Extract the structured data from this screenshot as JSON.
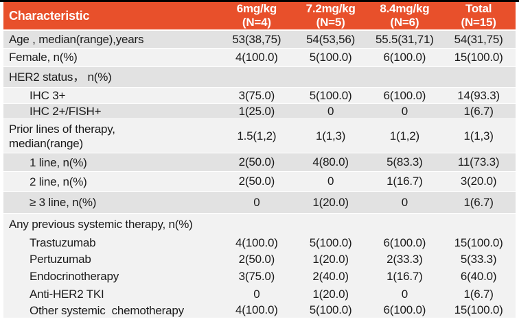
{
  "table": {
    "colors": {
      "header_bg": "#E8502B",
      "header_text": "#FFFFFF",
      "row_dark": "#E2E2E2",
      "row_light": "#F2F2F2",
      "top_border": "#000000",
      "body_text": "#1B1B1B"
    },
    "header": {
      "characteristic": "Characteristic",
      "columns": [
        "6mg/kg\n(N=4)",
        "7.2mg/kg\n(N=5)",
        "8.4mg/kg\n(N=6)",
        "Total\n(N=15)"
      ]
    },
    "rows": [
      {
        "label": "Age , median(range),years",
        "indent": false,
        "shade": "dark",
        "values": [
          "53(38,75)",
          "54(53,56)",
          "55.5(31,71)",
          "54(31,75)"
        ]
      },
      {
        "label": "Female, n(%)",
        "indent": false,
        "shade": "light",
        "values": [
          "4(100.0)",
          "5(100.0)",
          "6(100.0)",
          "15(100.0)"
        ]
      },
      {
        "label": "HER2 status， n(%)",
        "indent": false,
        "shade": "dark",
        "values": [
          "",
          "",
          "",
          ""
        ]
      },
      {
        "label": "IHC 3+",
        "indent": true,
        "shade": "light",
        "values": [
          "3(75.0)",
          "5(100.0)",
          "6(100.0)",
          "14(93.3)"
        ]
      },
      {
        "label": "IHC 2+/FISH+",
        "indent": true,
        "shade": "dark",
        "values": [
          "1(25.0)",
          "0",
          "0",
          "1(6.7)"
        ]
      },
      {
        "label": "Prior lines of therapy,\nmedian(range)",
        "indent": false,
        "shade": "light",
        "values": [
          "1.5(1,2)",
          "1(1,3)",
          "1(1,2)",
          "1(1,3)"
        ]
      },
      {
        "label": "1 line, n(%)",
        "indent": true,
        "shade": "dark",
        "values": [
          "2(50.0)",
          "4(80.0)",
          "5(83.3)",
          "11(73.3)"
        ]
      },
      {
        "label": "2 line, n(%)",
        "indent": true,
        "shade": "light",
        "values": [
          "2(50.0)",
          "0",
          "1(16.7)",
          "3(20.0)"
        ]
      },
      {
        "label": "≥ 3 line, n(%)",
        "indent": true,
        "shade": "dark",
        "values": [
          "0",
          "1(20.0)",
          "0",
          "1(6.7)"
        ]
      },
      {
        "label": "Any previous systemic therapy, n(%)",
        "indent": false,
        "shade": "light",
        "values": [
          "",
          "",
          "",
          ""
        ]
      },
      {
        "label": "Trastuzumab",
        "indent": true,
        "shade": "light",
        "values": [
          "4(100.0)",
          "5(100.0)",
          "6(100.0)",
          "15(100.0)"
        ]
      },
      {
        "label": "Pertuzumab",
        "indent": true,
        "shade": "light",
        "values": [
          "2(50.0)",
          "1(20.0)",
          "2(33.3)",
          "5(33.3)"
        ]
      },
      {
        "label": "Endocrinotherapy",
        "indent": true,
        "shade": "light",
        "values": [
          "3(75.0)",
          "2(40.0)",
          "1(16.7)",
          "6(40.0)"
        ]
      },
      {
        "label": "Anti-HER2 TKI",
        "indent": true,
        "shade": "light",
        "values": [
          "0",
          "1(20.0)",
          "0",
          "1(6.7)"
        ]
      },
      {
        "label": "Other systemic  chemotherapy",
        "indent": true,
        "shade": "light",
        "values": [
          "4(100.0)",
          "5(100.0)",
          "6(100.0)",
          "15(100.0)"
        ]
      }
    ]
  }
}
